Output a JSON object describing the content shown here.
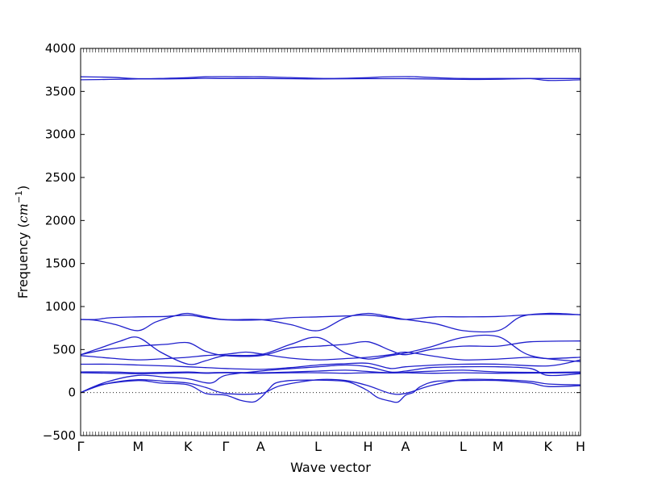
{
  "chart_data": {
    "type": "line",
    "title": "",
    "xlabel": "Wave vector",
    "ylabel_main": "Frequency (",
    "ylabel_math": "cm",
    "ylabel_exp": "−1",
    "ylabel_close": ")",
    "ylim": [
      -500,
      4000
    ],
    "yticks": [
      -500,
      0,
      500,
      1000,
      1500,
      2000,
      2500,
      3000,
      3500,
      4000
    ],
    "ytick_labels": [
      "−500",
      "0",
      "500",
      "1000",
      "1500",
      "2000",
      "2500",
      "3000",
      "3500",
      "4000"
    ],
    "xlim": [
      0,
      10
    ],
    "high_symmetry_points": [
      {
        "label": "Γ",
        "x": 0.0
      },
      {
        "label": "M",
        "x": 1.15
      },
      {
        "label": "K",
        "x": 2.15
      },
      {
        "label": "Γ",
        "x": 2.9
      },
      {
        "label": "A",
        "x": 3.6
      },
      {
        "label": "L",
        "x": 4.75
      },
      {
        "label": "H",
        "x": 5.75
      },
      {
        "label": "A",
        "x": 6.5
      },
      {
        "label": "L",
        "x": 7.65
      },
      {
        "label": "M",
        "x": 8.35
      },
      {
        "label": "K",
        "x": 9.35
      },
      {
        "label": "H",
        "x": 10.0
      }
    ],
    "zero_line": {
      "y": 0,
      "style": "dotted"
    },
    "line_color": "#1f1fcc",
    "series": [
      {
        "x": [
          0,
          0.6,
          1.15,
          1.7,
          2.15,
          2.5,
          2.9,
          3.2,
          3.6,
          3.9,
          4.75,
          5.2,
          5.75,
          6.05,
          6.5,
          6.7,
          7.1,
          7.65,
          8.35,
          9.35,
          10.0
        ],
        "y": [
          3670,
          3664,
          3648,
          3652,
          3660,
          3670,
          3672,
          3670,
          3670,
          3666,
          3652,
          3652,
          3660,
          3668,
          3672,
          3670,
          3660,
          3650,
          3650,
          3650,
          3650
        ]
      },
      {
        "x": [
          0,
          0.6,
          1.15,
          1.7,
          2.15,
          2.5,
          2.9,
          3.6,
          4.75,
          5.75,
          6.5,
          7.65,
          8.35,
          9.0,
          9.35,
          10.0
        ],
        "y": [
          3635,
          3640,
          3645,
          3645,
          3648,
          3652,
          3650,
          3650,
          3645,
          3648,
          3648,
          3640,
          3642,
          3648,
          3628,
          3635
        ]
      },
      {
        "x": [
          0,
          0.3,
          0.6,
          1.15,
          1.7,
          2.15,
          2.5,
          2.9,
          3.6,
          4.2,
          4.75,
          5.3,
          5.75,
          6.2,
          6.5,
          7.1,
          7.65,
          8.35,
          9.0,
          9.35,
          10.0
        ],
        "y": [
          850,
          850,
          870,
          880,
          885,
          900,
          870,
          845,
          845,
          870,
          880,
          890,
          900,
          870,
          850,
          880,
          880,
          885,
          905,
          910,
          905
        ]
      },
      {
        "x": [
          0,
          0.3,
          0.7,
          1.15,
          1.5,
          1.9,
          2.15,
          2.5,
          2.9,
          3.6,
          4.2,
          4.75,
          5.3,
          5.75,
          6.2,
          6.5,
          7.1,
          7.65,
          8.35,
          8.8,
          9.35,
          10.0
        ],
        "y": [
          850,
          840,
          790,
          720,
          820,
          895,
          920,
          880,
          848,
          848,
          790,
          720,
          870,
          920,
          880,
          850,
          800,
          720,
          720,
          880,
          920,
          905
        ]
      },
      {
        "x": [
          0,
          0.4,
          0.8,
          1.15,
          1.6,
          2.15,
          2.5,
          2.9,
          3.6,
          4.2,
          4.75,
          5.3,
          5.75,
          6.2,
          6.5,
          7.0,
          7.65,
          8.35,
          9.0,
          10.0
        ],
        "y": [
          440,
          520,
          600,
          640,
          470,
          330,
          370,
          430,
          440,
          560,
          640,
          460,
          390,
          430,
          460,
          530,
          640,
          650,
          430,
          360
        ]
      },
      {
        "x": [
          0,
          0.5,
          1.15,
          1.7,
          2.15,
          2.5,
          2.9,
          3.6,
          4.2,
          4.75,
          5.3,
          5.75,
          6.2,
          6.5,
          7.0,
          7.65,
          8.35,
          9.0,
          10.0
        ],
        "y": [
          440,
          500,
          540,
          560,
          580,
          480,
          430,
          430,
          520,
          540,
          560,
          590,
          490,
          440,
          500,
          540,
          540,
          590,
          600
        ]
      },
      {
        "x": [
          0,
          0.6,
          1.15,
          1.7,
          2.15,
          2.5,
          2.9,
          3.3,
          3.6,
          4.2,
          4.75,
          5.3,
          5.75,
          6.2,
          6.5,
          7.1,
          7.65,
          8.35,
          9.0,
          9.35,
          10.0
        ],
        "y": [
          430,
          400,
          380,
          395,
          410,
          430,
          445,
          470,
          450,
          400,
          380,
          395,
          410,
          440,
          470,
          420,
          380,
          390,
          410,
          395,
          410
        ]
      },
      {
        "x": [
          0,
          0.6,
          1.15,
          1.7,
          2.15,
          2.5,
          2.9,
          3.6,
          4.2,
          4.75,
          5.3,
          5.75,
          6.2,
          6.5,
          7.1,
          7.65,
          8.35,
          9.35,
          10.0
        ],
        "y": [
          330,
          330,
          320,
          310,
          300,
          290,
          280,
          270,
          290,
          320,
          335,
          340,
          280,
          300,
          320,
          330,
          330,
          310,
          380
        ]
      },
      {
        "x": [
          0,
          0.6,
          1.15,
          1.7,
          2.15,
          2.5,
          2.9,
          3.6,
          4.2,
          4.75,
          5.3,
          5.75,
          6.2,
          6.5,
          7.1,
          7.65,
          8.35,
          9.35,
          10.0
        ],
        "y": [
          240,
          240,
          230,
          235,
          240,
          230,
          235,
          230,
          240,
          250,
          260,
          245,
          230,
          235,
          250,
          260,
          240,
          235,
          240
        ]
      },
      {
        "x": [
          0,
          0.6,
          1.15,
          1.7,
          2.15,
          2.5,
          2.9,
          3.6,
          4.2,
          4.75,
          5.3,
          5.75,
          6.2,
          6.5,
          7.1,
          7.65,
          8.35,
          9.35,
          10.0
        ],
        "y": [
          230,
          225,
          220,
          225,
          230,
          225,
          230,
          225,
          230,
          230,
          225,
          230,
          228,
          230,
          225,
          230,
          225,
          228,
          230
        ]
      },
      {
        "x": [
          0,
          0.5,
          1.15,
          1.7,
          2.15,
          2.6,
          2.9,
          3.6,
          4.0,
          4.75,
          5.3,
          5.75,
          6.2,
          6.5,
          7.0,
          7.65,
          8.35,
          9.0,
          9.35,
          10.0
        ],
        "y": [
          0,
          120,
          200,
          180,
          160,
          110,
          200,
          250,
          270,
          300,
          320,
          300,
          240,
          250,
          290,
          300,
          300,
          280,
          200,
          220
        ]
      },
      {
        "x": [
          0,
          0.5,
          1.15,
          1.7,
          2.15,
          2.5,
          2.9,
          3.6,
          4.0,
          4.75,
          5.3,
          5.75,
          6.2,
          6.5,
          7.0,
          7.65,
          8.35,
          9.0,
          9.35,
          10.0
        ],
        "y": [
          0,
          100,
          150,
          130,
          110,
          60,
          -10,
          -10,
          80,
          150,
          140,
          80,
          -10,
          -10,
          80,
          150,
          150,
          130,
          100,
          90
        ]
      },
      {
        "x": [
          0,
          0.4,
          1.15,
          1.6,
          2.15,
          2.5,
          2.9,
          3.2,
          3.45,
          3.6,
          3.75,
          3.9,
          4.2,
          4.75,
          5.3,
          5.55,
          5.75,
          5.95,
          6.2,
          6.35,
          6.5,
          6.65,
          6.8,
          7.1,
          7.65,
          8.35,
          9.0,
          9.35,
          10.0
        ],
        "y": [
          0,
          90,
          140,
          110,
          90,
          -10,
          -30,
          -90,
          -110,
          -60,
          30,
          110,
          140,
          145,
          130,
          80,
          20,
          -60,
          -100,
          -110,
          -30,
          0,
          70,
          130,
          140,
          140,
          110,
          70,
          80
        ]
      }
    ]
  }
}
